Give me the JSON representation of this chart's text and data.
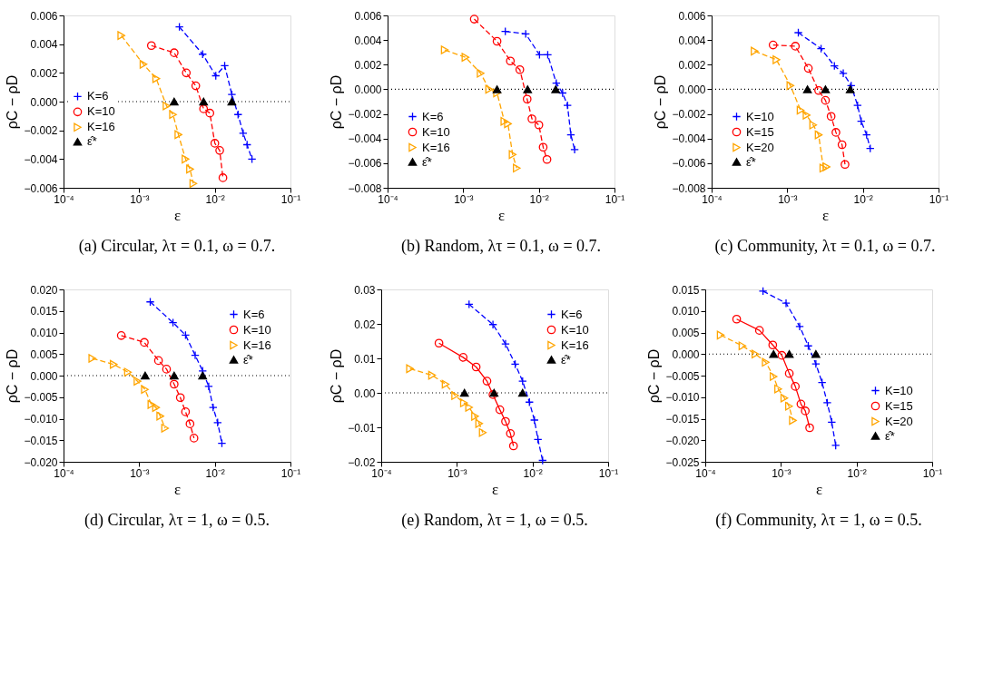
{
  "chart_data": [
    {
      "type": "line",
      "title": "(a) Circular, λτ = 0.1, ω = 0.7.",
      "xlabel": "ε",
      "ylabel": "ρC − ρD",
      "log": "x",
      "legend": "left",
      "xlim": [
        0.0001,
        0.1
      ],
      "xticks": [
        {
          "value": 0.0001,
          "label": "10⁻⁴"
        },
        {
          "value": 0.001,
          "label": "10⁻³"
        },
        {
          "value": 0.01,
          "label": "10⁻²"
        },
        {
          "value": 0.1,
          "label": "10⁻¹"
        }
      ],
      "ylim": [
        -0.006,
        0.006
      ],
      "yticks": [
        {
          "value": 0.006,
          "label": "0.006"
        },
        {
          "value": 0.004,
          "label": "0.004"
        },
        {
          "value": 0.002,
          "label": "0.002"
        },
        {
          "value": 0,
          "label": "0.000"
        },
        {
          "value": -0.002,
          "label": "−0.002"
        },
        {
          "value": -0.004,
          "label": "−0.004"
        },
        {
          "value": -0.006,
          "label": "−0.006"
        }
      ],
      "ref_lines": [
        {
          "axis": "y",
          "value": 0,
          "line_style": "dotted",
          "color": "#000000"
        }
      ],
      "series": [
        {
          "name": "K=6",
          "color": "#0000ff",
          "marker": "cross",
          "line_style": "dashed",
          "x": [
            0.0034,
            0.0069,
            0.0103,
            0.0135,
            0.0168,
            0.0203,
            0.0237,
            0.0267,
            0.031
          ],
          "values": [
            0.0052,
            0.0033,
            0.0018,
            0.0025,
            0.0005,
            -0.0009,
            -0.0022,
            -0.003,
            -0.004
          ]
        },
        {
          "name": "K=10",
          "color": "#ff0000",
          "marker": "circle",
          "line_style": "dashed",
          "x": [
            0.00145,
            0.0029,
            0.0042,
            0.0056,
            0.0071,
            0.0086,
            0.01,
            0.0116,
            0.0128
          ],
          "values": [
            0.0039,
            0.0034,
            0.002,
            0.0011,
            -0.0005,
            -0.0008,
            -0.0029,
            -0.0034,
            -0.0053
          ]
        },
        {
          "name": "K=16",
          "color": "#ffa500",
          "marker": "triangle",
          "line_style": "dashed",
          "x": [
            0.00058,
            0.00114,
            0.00168,
            0.0023,
            0.0028,
            0.0033,
            0.0041,
            0.0047,
            0.0052
          ],
          "values": [
            0.0046,
            0.0026,
            0.0016,
            -0.0003,
            -0.0009,
            -0.0023,
            -0.004,
            -0.0047,
            -0.0057
          ]
        },
        {
          "name": "ε̂*",
          "type": "scatter",
          "color": "#000000",
          "marker": "triangle",
          "x": [
            0.0029,
            0.0071,
            0.0168
          ],
          "values": [
            0,
            0,
            0
          ]
        }
      ]
    },
    {
      "type": "line",
      "title": "(b) Random, λτ = 0.1, ω = 0.7.",
      "xlabel": "ε",
      "ylabel": "ρC − ρD",
      "log": "x",
      "legend": "bottom left",
      "xlim": [
        0.0001,
        0.1
      ],
      "xticks": [
        {
          "value": 0.0001,
          "label": "10⁻⁴"
        },
        {
          "value": 0.001,
          "label": "10⁻³"
        },
        {
          "value": 0.01,
          "label": "10⁻²"
        },
        {
          "value": 0.1,
          "label": "10⁻¹"
        }
      ],
      "ylim": [
        -0.008,
        0.006
      ],
      "yticks": [
        {
          "value": 0.006,
          "label": "0.006"
        },
        {
          "value": 0.004,
          "label": "0.004"
        },
        {
          "value": 0.002,
          "label": "0.002"
        },
        {
          "value": 0,
          "label": "0.000"
        },
        {
          "value": -0.002,
          "label": "−0.002"
        },
        {
          "value": -0.004,
          "label": "−0.004"
        },
        {
          "value": -0.006,
          "label": "−0.006"
        },
        {
          "value": -0.008,
          "label": "−0.008"
        }
      ],
      "ref_lines": [
        {
          "axis": "y",
          "value": 0,
          "line_style": "dotted",
          "color": "#000000"
        }
      ],
      "series": [
        {
          "name": "K=6",
          "color": "#0000ff",
          "marker": "cross",
          "line_style": "dashed",
          "x": [
            0.0036,
            0.0067,
            0.0102,
            0.0131,
            0.017,
            0.0206,
            0.0239,
            0.0265,
            0.0297
          ],
          "values": [
            0.0047,
            0.0045,
            0.0028,
            0.0028,
            0.0005,
            -0.0003,
            -0.0013,
            -0.0037,
            -0.0049
          ]
        },
        {
          "name": "K=10",
          "color": "#ff0000",
          "marker": "circle",
          "line_style": "dashed",
          "x": [
            0.0014,
            0.0028,
            0.0042,
            0.0056,
            0.007,
            0.0081,
            0.01,
            0.0114,
            0.0128
          ],
          "values": [
            0.0057,
            0.0039,
            0.0023,
            0.0016,
            -0.0008,
            -0.0024,
            -0.0029,
            -0.0047,
            -0.0057
          ]
        },
        {
          "name": "K=16",
          "color": "#ffa500",
          "marker": "triangle",
          "line_style": "dashed",
          "x": [
            0.00057,
            0.00107,
            0.0017,
            0.0022,
            0.0028,
            0.0035,
            0.0039,
            0.0045,
            0.0051
          ],
          "values": [
            0.0032,
            0.0026,
            0.0013,
            0.0,
            -0.0003,
            -0.0026,
            -0.0028,
            -0.0053,
            -0.0064
          ]
        },
        {
          "name": "ε̂*",
          "type": "scatter",
          "color": "#000000",
          "marker": "triangle",
          "x": [
            0.0028,
            0.0071,
            0.0167
          ],
          "values": [
            0,
            0,
            0
          ]
        }
      ]
    },
    {
      "type": "line",
      "title": "(c) Community, λτ = 0.1, ω = 0.7.",
      "xlabel": "ε",
      "ylabel": "ρC − ρD",
      "log": "x",
      "legend": "bottom left",
      "xlim": [
        0.0001,
        0.1
      ],
      "xticks": [
        {
          "value": 0.0001,
          "label": "10⁻⁴"
        },
        {
          "value": 0.001,
          "label": "10⁻³"
        },
        {
          "value": 0.01,
          "label": "10⁻²"
        },
        {
          "value": 0.1,
          "label": "10⁻¹"
        }
      ],
      "ylim": [
        -0.008,
        0.006
      ],
      "yticks": [
        {
          "value": 0.006,
          "label": "0.006"
        },
        {
          "value": 0.004,
          "label": "0.004"
        },
        {
          "value": 0.002,
          "label": "0.002"
        },
        {
          "value": 0,
          "label": "0.000"
        },
        {
          "value": -0.002,
          "label": "−0.002"
        },
        {
          "value": -0.004,
          "label": "−0.004"
        },
        {
          "value": -0.006,
          "label": "−0.006"
        },
        {
          "value": -0.008,
          "label": "−0.008"
        }
      ],
      "ref_lines": [
        {
          "axis": "y",
          "value": 0,
          "line_style": "dotted",
          "color": "#000000"
        }
      ],
      "series": [
        {
          "name": "K=10",
          "color": "#0000ff",
          "marker": "cross",
          "line_style": "dashed",
          "x": [
            0.0014,
            0.0028,
            0.0042,
            0.0055,
            0.007,
            0.0085,
            0.0095,
            0.0112,
            0.0125
          ],
          "values": [
            0.0046,
            0.0033,
            0.0019,
            0.0013,
            0.0003,
            -0.0013,
            -0.0026,
            -0.0037,
            -0.0048
          ]
        },
        {
          "name": "K=15",
          "color": "#ff0000",
          "marker": "circle",
          "line_style": "dashed",
          "x": [
            0.00065,
            0.00128,
            0.0019,
            0.0026,
            0.0032,
            0.0038,
            0.0044,
            0.0053,
            0.0058
          ],
          "values": [
            0.0036,
            0.0035,
            0.0017,
            -0.0001,
            -0.0009,
            -0.0022,
            -0.0035,
            -0.0045,
            -0.0061
          ]
        },
        {
          "name": "K=20",
          "color": "#ffa500",
          "marker": "triangle",
          "line_style": "dashed",
          "x": [
            0.00037,
            0.00072,
            0.0011,
            0.0015,
            0.0018,
            0.0022,
            0.0026,
            0.003,
            0.0033
          ],
          "values": [
            0.0031,
            0.0024,
            0.0003,
            -0.0017,
            -0.0021,
            -0.0029,
            -0.0037,
            -0.0064,
            -0.0063
          ]
        },
        {
          "name": "ε̂*",
          "type": "scatter",
          "color": "#000000",
          "marker": "triangle",
          "x": [
            0.00185,
            0.0032,
            0.0068
          ],
          "values": [
            0,
            0,
            0
          ]
        }
      ]
    },
    {
      "type": "line",
      "title": "(d) Circular, λτ = 1, ω = 0.5.",
      "xlabel": "ε",
      "ylabel": "ρC − ρD",
      "log": "x",
      "legend": "top right",
      "xlim": [
        0.0001,
        0.1
      ],
      "xticks": [
        {
          "value": 0.0001,
          "label": "10⁻⁴"
        },
        {
          "value": 0.001,
          "label": "10⁻³"
        },
        {
          "value": 0.01,
          "label": "10⁻²"
        },
        {
          "value": 0.1,
          "label": "10⁻¹"
        }
      ],
      "ylim": [
        -0.02,
        0.02
      ],
      "yticks": [
        {
          "value": 0.02,
          "label": "0.020"
        },
        {
          "value": 0.015,
          "label": "0.015"
        },
        {
          "value": 0.01,
          "label": "0.010"
        },
        {
          "value": 0.005,
          "label": "0.005"
        },
        {
          "value": 0,
          "label": "0.000"
        },
        {
          "value": -0.005,
          "label": "−0.005"
        },
        {
          "value": -0.01,
          "label": "−0.010"
        },
        {
          "value": -0.015,
          "label": "−0.015"
        },
        {
          "value": -0.02,
          "label": "−0.020"
        }
      ],
      "ref_lines": [
        {
          "axis": "y",
          "value": 0,
          "line_style": "dotted",
          "color": "#000000"
        }
      ],
      "series": [
        {
          "name": "K=6",
          "color": "#0000ff",
          "marker": "cross",
          "line_style": "dashed",
          "x": [
            0.0014,
            0.0028,
            0.0041,
            0.0055,
            0.0069,
            0.0083,
            0.0095,
            0.0109,
            0.0124
          ],
          "values": [
            0.0171,
            0.0123,
            0.0094,
            0.0047,
            0.0011,
            -0.0025,
            -0.0074,
            -0.0109,
            -0.0157
          ]
        },
        {
          "name": "K=10",
          "color": "#ff0000",
          "marker": "circle",
          "line_style": "dashed",
          "x": [
            0.00058,
            0.00117,
            0.0018,
            0.0023,
            0.0029,
            0.0035,
            0.0041,
            0.0047,
            0.0053
          ],
          "values": [
            0.0093,
            0.0077,
            0.0035,
            0.0015,
            -0.002,
            -0.0051,
            -0.0084,
            -0.0112,
            -0.0145
          ]
        },
        {
          "name": "K=16",
          "color": "#ffa500",
          "marker": "triangle",
          "line_style": "dashed",
          "x": [
            0.00024,
            0.00046,
            0.00071,
            0.00095,
            0.00119,
            0.00145,
            0.00167,
            0.0019,
            0.0022
          ],
          "values": [
            0.004,
            0.0026,
            0.0008,
            -0.0013,
            -0.0032,
            -0.0067,
            -0.0074,
            -0.0094,
            -0.0122
          ]
        },
        {
          "name": "ε̂*",
          "type": "scatter",
          "color": "#000000",
          "marker": "triangle",
          "x": [
            0.0012,
            0.0029,
            0.0069
          ],
          "values": [
            0,
            0,
            0
          ]
        }
      ]
    },
    {
      "type": "line",
      "title": "(e) Random, λτ = 1, ω = 0.5.",
      "xlabel": "ε",
      "ylabel": "ρC − ρD",
      "log": "x",
      "legend": "top right",
      "xlim": [
        0.0001,
        0.1
      ],
      "xticks": [
        {
          "value": 0.0001,
          "label": "10⁻⁴"
        },
        {
          "value": 0.001,
          "label": "10⁻³"
        },
        {
          "value": 0.01,
          "label": "10⁻²"
        },
        {
          "value": 0.1,
          "label": "10⁻¹"
        }
      ],
      "ylim": [
        -0.02,
        0.03
      ],
      "yticks": [
        {
          "value": 0.03,
          "label": "0.03"
        },
        {
          "value": 0.02,
          "label": "0.02"
        },
        {
          "value": 0.01,
          "label": "0.01"
        },
        {
          "value": 0,
          "label": "0.00"
        },
        {
          "value": -0.01,
          "label": "−0.01"
        },
        {
          "value": -0.02,
          "label": "−0.02"
        }
      ],
      "ref_lines": [
        {
          "axis": "y",
          "value": 0,
          "line_style": "dotted",
          "color": "#000000"
        }
      ],
      "series": [
        {
          "name": "K=6",
          "color": "#0000ff",
          "marker": "cross",
          "line_style": "dashed",
          "x": [
            0.00145,
            0.003,
            0.0044,
            0.0059,
            0.0074,
            0.0091,
            0.0106,
            0.0118,
            0.0136
          ],
          "values": [
            0.0257,
            0.0198,
            0.0142,
            0.0083,
            0.0034,
            -0.0027,
            -0.0079,
            -0.0135,
            -0.0196
          ]
        },
        {
          "name": "K=10",
          "color": "#ff0000",
          "marker": "circle",
          "line_style": "solid",
          "x": [
            0.00058,
            0.00121,
            0.0018,
            0.0025,
            0.003,
            0.0037,
            0.0044,
            0.0051,
            0.0056
          ],
          "values": [
            0.0144,
            0.0103,
            0.0075,
            0.0034,
            -0.0005,
            -0.0049,
            -0.0083,
            -0.0118,
            -0.0154
          ]
        },
        {
          "name": "K=16",
          "color": "#ffa500",
          "marker": "triangle",
          "line_style": "dashed",
          "x": [
            0.00024,
            0.00047,
            0.00071,
            0.00095,
            0.00124,
            0.00145,
            0.00174,
            0.00197,
            0.0022
          ],
          "values": [
            0.007,
            0.0051,
            0.0025,
            -0.0008,
            -0.0029,
            -0.0042,
            -0.0068,
            -0.0089,
            -0.0115
          ]
        },
        {
          "name": "ε̂*",
          "type": "scatter",
          "color": "#000000",
          "marker": "triangle",
          "x": [
            0.00126,
            0.0031,
            0.0074
          ],
          "values": [
            0,
            0,
            0
          ]
        }
      ]
    },
    {
      "type": "line",
      "title": "(f) Community, λτ = 1, ω = 0.5.",
      "xlabel": "ε",
      "ylabel": "ρC − ρD",
      "log": "x",
      "legend": "bottom right",
      "xlim": [
        0.0001,
        0.1
      ],
      "xticks": [
        {
          "value": 0.0001,
          "label": "10⁻⁴"
        },
        {
          "value": 0.001,
          "label": "10⁻³"
        },
        {
          "value": 0.01,
          "label": "10⁻²"
        },
        {
          "value": 0.1,
          "label": "10⁻¹"
        }
      ],
      "ylim": [
        -0.025,
        0.015
      ],
      "yticks": [
        {
          "value": 0.015,
          "label": "0.015"
        },
        {
          "value": 0.01,
          "label": "0.010"
        },
        {
          "value": 0.005,
          "label": "0.005"
        },
        {
          "value": 0,
          "label": "0.000"
        },
        {
          "value": -0.005,
          "label": "−0.005"
        },
        {
          "value": -0.01,
          "label": "−0.010"
        },
        {
          "value": -0.015,
          "label": "−0.015"
        },
        {
          "value": -0.02,
          "label": "−0.020"
        },
        {
          "value": -0.025,
          "label": "−0.025"
        }
      ],
      "ref_lines": [
        {
          "axis": "y",
          "value": 0,
          "line_style": "dotted",
          "color": "#000000"
        }
      ],
      "series": [
        {
          "name": "K=10",
          "color": "#0000ff",
          "marker": "cross",
          "line_style": "dashed",
          "x": [
            0.00058,
            0.00117,
            0.00177,
            0.0023,
            0.0029,
            0.0035,
            0.0041,
            0.0047,
            0.0053
          ],
          "values": [
            0.0146,
            0.0118,
            0.0064,
            0.0019,
            -0.0023,
            -0.0066,
            -0.0113,
            -0.0158,
            -0.0212
          ]
        },
        {
          "name": "K=15",
          "color": "#ff0000",
          "marker": "circle",
          "line_style": "solid",
          "x": [
            0.00026,
            0.00052,
            0.00078,
            0.00103,
            0.00129,
            0.00155,
            0.00184,
            0.0021,
            0.0024
          ],
          "values": [
            0.0081,
            0.0055,
            0.0021,
            -0.0003,
            -0.0045,
            -0.0075,
            -0.0116,
            -0.0132,
            -0.0171
          ]
        },
        {
          "name": "K=20",
          "color": "#ffa500",
          "marker": "triangle",
          "line_style": "dashed",
          "x": [
            0.00016,
            0.00031,
            0.00046,
            0.00063,
            0.0008,
            0.00092,
            0.00111,
            0.00128,
            0.00144
          ],
          "values": [
            0.0044,
            0.0019,
            0.0,
            -0.0019,
            -0.0052,
            -0.0081,
            -0.0102,
            -0.0121,
            -0.0154
          ]
        },
        {
          "name": "ε̂*",
          "type": "scatter",
          "color": "#000000",
          "marker": "triangle",
          "x": [
            0.0008,
            0.00129,
            0.0029
          ],
          "values": [
            0,
            0,
            0
          ]
        }
      ]
    }
  ]
}
